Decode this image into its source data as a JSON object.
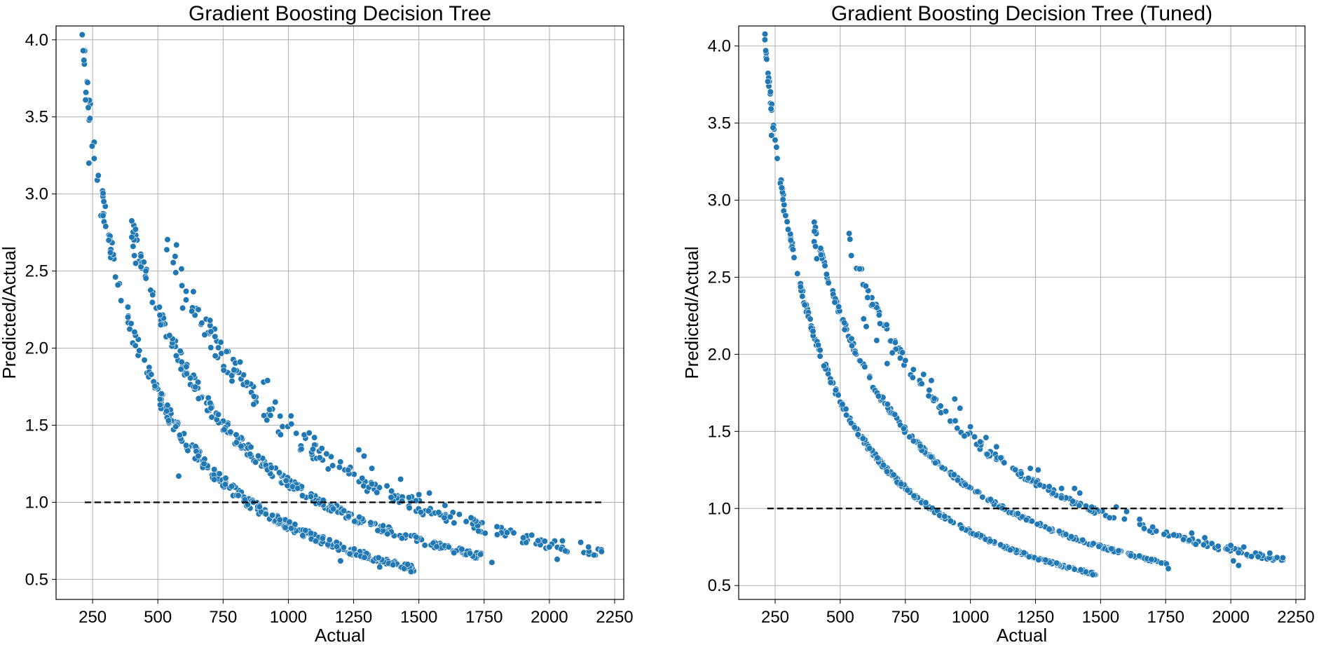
{
  "figure": {
    "background": "#ffffff"
  },
  "chart_data": [
    {
      "type": "scatter",
      "title": "Gradient Boosting Decision Tree",
      "xlabel": "Actual",
      "ylabel": "Predicted/Actual",
      "xlim": [
        110,
        2285
      ],
      "ylim": [
        0.37,
        4.09
      ],
      "xticks": [
        250,
        500,
        750,
        1000,
        1250,
        1500,
        1750,
        2000,
        2250
      ],
      "yticks": [
        0.5,
        1.0,
        1.5,
        2.0,
        2.5,
        3.0,
        3.5,
        4.0
      ],
      "grid": true,
      "color": "#1f77b4",
      "reference_line": {
        "y": 1.0,
        "x": [
          220,
          2200
        ],
        "style": "dashed",
        "color": "#000000"
      },
      "bands": [
        {
          "multiplier": 850,
          "x_range": [
            210,
            1480
          ],
          "count": 330,
          "jitter": 0.035
        },
        {
          "multiplier": 1130,
          "x_range": [
            400,
            1750
          ],
          "count": 280,
          "jitter": 0.03
        },
        {
          "multiplier": 1460,
          "x_range": [
            530,
            2200
          ],
          "count": 200,
          "jitter": 0.045
        }
      ],
      "points": [
        [
          214,
          3.93
        ],
        [
          223,
          3.61
        ],
        [
          236,
          3.2
        ],
        [
          240,
          3.49
        ],
        [
          248,
          3.31
        ],
        [
          256,
          3.23
        ],
        [
          268,
          3.09
        ],
        [
          272,
          3.12
        ],
        [
          282,
          2.86
        ],
        [
          290,
          2.86
        ],
        [
          294,
          2.82
        ],
        [
          300,
          2.79
        ],
        [
          312,
          2.7
        ],
        [
          318,
          2.62
        ],
        [
          400,
          2.72
        ],
        [
          405,
          2.66
        ],
        [
          410,
          2.6
        ],
        [
          415,
          2.55
        ],
        [
          595,
          2.26
        ],
        [
          630,
          2.24
        ],
        [
          655,
          2.25
        ],
        [
          700,
          2.18
        ],
        [
          720,
          1.95
        ],
        [
          815,
          1.91
        ],
        [
          905,
          1.78
        ],
        [
          920,
          1.79
        ],
        [
          580,
          1.17
        ],
        [
          950,
          1.65
        ],
        [
          1010,
          1.56
        ],
        [
          1080,
          1.45
        ],
        [
          1100,
          1.42
        ],
        [
          1270,
          1.34
        ],
        [
          1290,
          1.3
        ],
        [
          1320,
          1.22
        ],
        [
          1430,
          1.15
        ],
        [
          1500,
          1.05
        ],
        [
          1540,
          1.06
        ],
        [
          1600,
          0.98
        ],
        [
          1700,
          0.9
        ],
        [
          1800,
          0.79
        ],
        [
          1900,
          0.77
        ],
        [
          2050,
          0.75
        ],
        [
          2120,
          0.74
        ],
        [
          2200,
          0.68
        ],
        [
          2150,
          0.71
        ],
        [
          2000,
          0.71
        ],
        [
          2030,
          0.63
        ],
        [
          1780,
          0.61
        ],
        [
          1470,
          0.55
        ],
        [
          1200,
          0.62
        ],
        [
          1350,
          0.58
        ]
      ]
    },
    {
      "type": "scatter",
      "title": "Gradient Boosting Decision Tree (Tuned)",
      "xlabel": "Actual",
      "ylabel": "Predicted/Actual",
      "xlim": [
        110,
        2285
      ],
      "ylim": [
        0.41,
        4.13
      ],
      "xticks": [
        250,
        500,
        750,
        1000,
        1250,
        1500,
        1750,
        2000,
        2250
      ],
      "yticks": [
        0.5,
        1.0,
        1.5,
        2.0,
        2.5,
        3.0,
        3.5,
        4.0
      ],
      "grid": true,
      "color": "#1f77b4",
      "reference_line": {
        "y": 1.0,
        "x": [
          220,
          2200
        ],
        "style": "dashed",
        "color": "#000000"
      },
      "bands": [
        {
          "multiplier": 850,
          "x_range": [
            210,
            1480
          ],
          "count": 330,
          "jitter": 0.012
        },
        {
          "multiplier": 1130,
          "x_range": [
            400,
            1760
          ],
          "count": 280,
          "jitter": 0.012
        },
        {
          "multiplier": 1460,
          "x_range": [
            530,
            2200
          ],
          "count": 200,
          "jitter": 0.02
        }
      ],
      "points": [
        [
          214,
          3.97
        ],
        [
          222,
          3.77
        ],
        [
          236,
          3.42
        ],
        [
          242,
          3.47
        ],
        [
          250,
          3.39
        ],
        [
          258,
          3.27
        ],
        [
          270,
          3.11
        ],
        [
          275,
          3.08
        ],
        [
          283,
          2.93
        ],
        [
          290,
          2.9
        ],
        [
          296,
          2.86
        ],
        [
          300,
          2.81
        ],
        [
          310,
          2.74
        ],
        [
          318,
          2.68
        ],
        [
          400,
          2.73
        ],
        [
          405,
          2.7
        ],
        [
          410,
          2.62
        ],
        [
          590,
          2.23
        ],
        [
          600,
          2.18
        ],
        [
          640,
          2.09
        ],
        [
          680,
          1.94
        ],
        [
          700,
          2.01
        ],
        [
          820,
          1.87
        ],
        [
          850,
          1.83
        ],
        [
          940,
          1.71
        ],
        [
          960,
          1.65
        ],
        [
          1000,
          1.53
        ],
        [
          1060,
          1.46
        ],
        [
          1100,
          1.4
        ],
        [
          1230,
          1.26
        ],
        [
          1260,
          1.25
        ],
        [
          1350,
          1.13
        ],
        [
          1400,
          1.13
        ],
        [
          1420,
          1.1
        ],
        [
          1560,
          1.01
        ],
        [
          1600,
          0.98
        ],
        [
          1650,
          0.93
        ],
        [
          1900,
          0.81
        ],
        [
          2000,
          0.76
        ],
        [
          2050,
          0.75
        ],
        [
          2150,
          0.71
        ],
        [
          2200,
          0.68
        ],
        [
          2010,
          0.66
        ],
        [
          2030,
          0.63
        ],
        [
          1760,
          0.61
        ],
        [
          1470,
          0.57
        ],
        [
          1700,
          0.88
        ],
        [
          1850,
          0.84
        ]
      ]
    }
  ]
}
